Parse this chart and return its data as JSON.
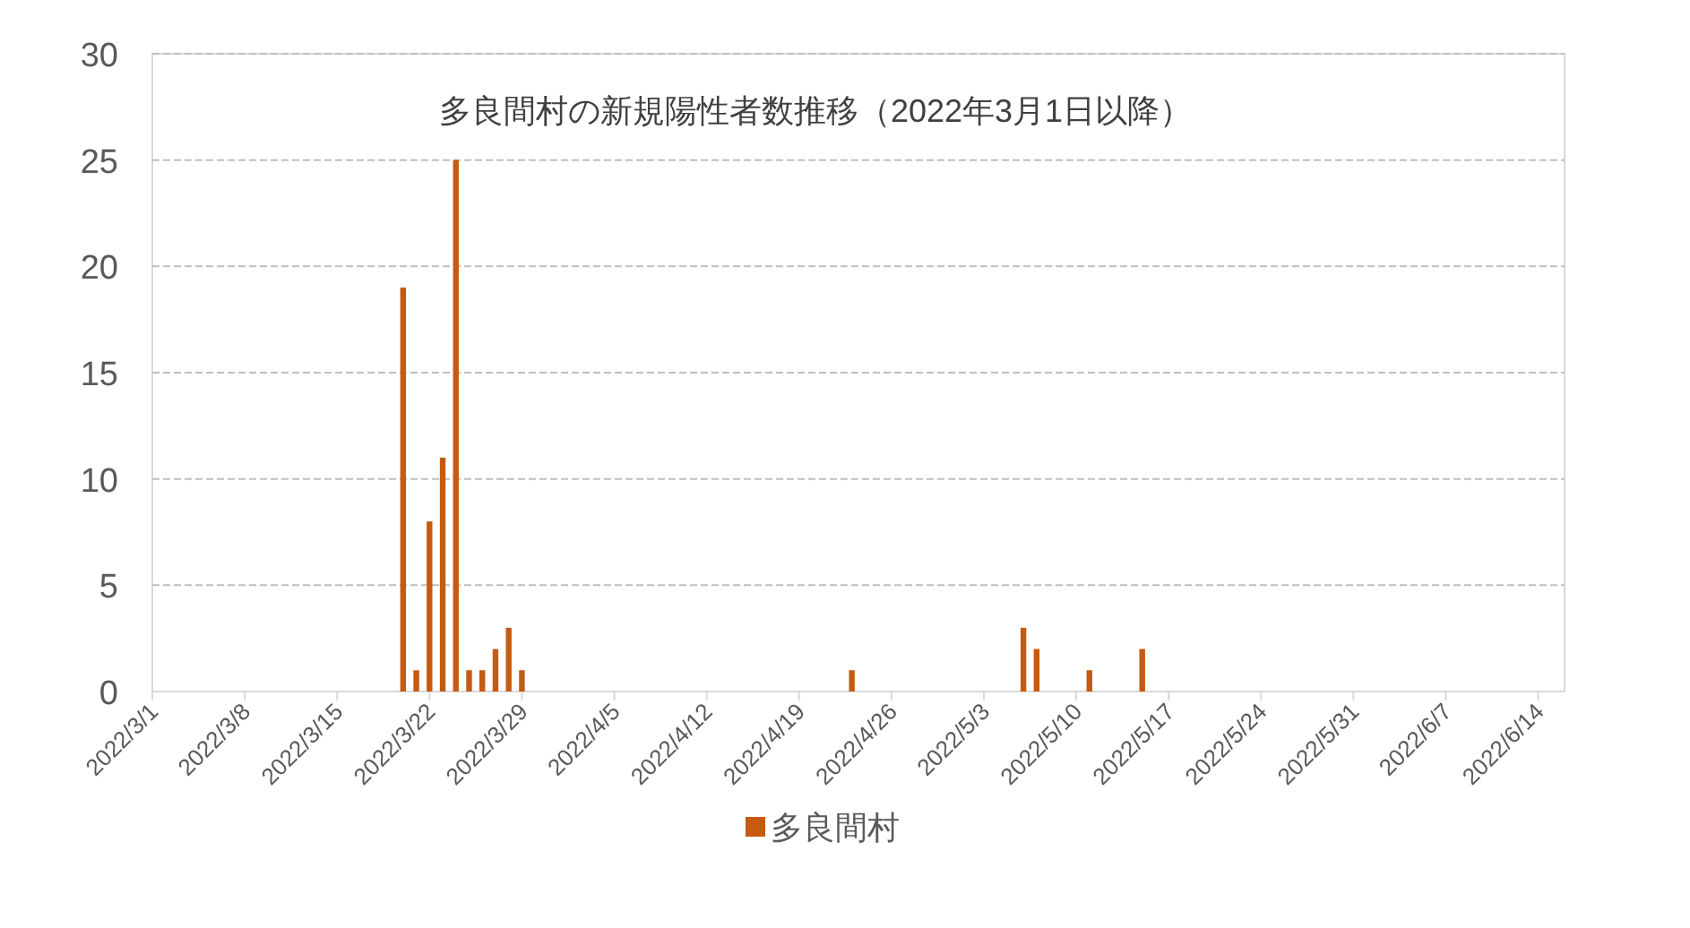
{
  "chart_data": {
    "type": "bar",
    "title": "多良間村の新規陽性者数推移（2022年3月1日以降）",
    "x": [
      "2022-03-20",
      "2022-03-21",
      "2022-03-22",
      "2022-03-23",
      "2022-03-24",
      "2022-03-25",
      "2022-03-26",
      "2022-03-27",
      "2022-03-28",
      "2022-03-29",
      "2022-04-23",
      "2022-05-06",
      "2022-05-07",
      "2022-05-11",
      "2022-05-15"
    ],
    "series": [
      {
        "name": "多良間村",
        "color": "#c55a11",
        "values": [
          19,
          1,
          8,
          11,
          25,
          1,
          1,
          2,
          3,
          1,
          1,
          3,
          2,
          1,
          2
        ]
      }
    ],
    "xlim": [
      "2022-03-01",
      "2022-06-16"
    ],
    "xticks": [
      {
        "value": "2022-03-01",
        "label": "2022/3/1"
      },
      {
        "value": "2022-03-08",
        "label": "2022/3/8"
      },
      {
        "value": "2022-03-15",
        "label": "2022/3/15"
      },
      {
        "value": "2022-03-22",
        "label": "2022/3/22"
      },
      {
        "value": "2022-03-29",
        "label": "2022/3/29"
      },
      {
        "value": "2022-04-05",
        "label": "2022/4/5"
      },
      {
        "value": "2022-04-12",
        "label": "2022/4/12"
      },
      {
        "value": "2022-04-19",
        "label": "2022/4/19"
      },
      {
        "value": "2022-04-26",
        "label": "2022/4/26"
      },
      {
        "value": "2022-05-03",
        "label": "2022/5/3"
      },
      {
        "value": "2022-05-10",
        "label": "2022/5/10"
      },
      {
        "value": "2022-05-17",
        "label": "2022/5/17"
      },
      {
        "value": "2022-05-24",
        "label": "2022/5/24"
      },
      {
        "value": "2022-05-31",
        "label": "2022/5/31"
      },
      {
        "value": "2022-06-07",
        "label": "2022/6/7"
      },
      {
        "value": "2022-06-14",
        "label": "2022/6/14"
      }
    ],
    "ylim": [
      0,
      30
    ],
    "yticks": [
      0,
      5,
      10,
      15,
      20,
      25,
      30
    ],
    "grid": "y",
    "legend": "bottom"
  }
}
